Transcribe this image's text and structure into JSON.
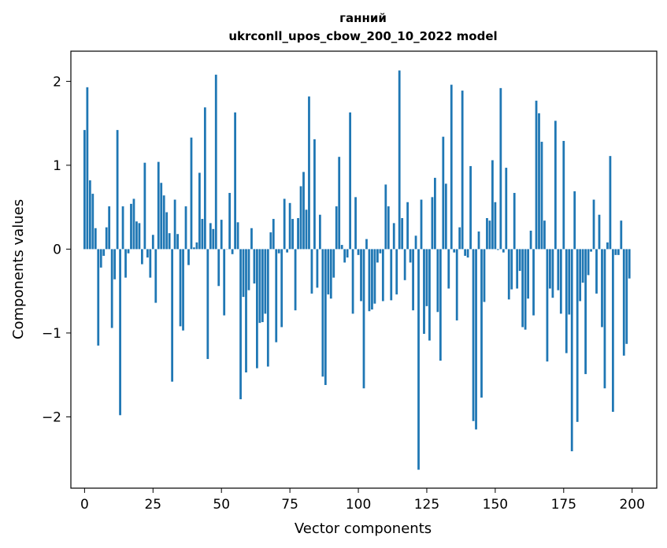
{
  "chart_data": {
    "type": "bar",
    "title_line1": "ганний",
    "title_line2": "ukrconll_upos_cbow_200_10_2022 model",
    "xlabel": "Vector components",
    "ylabel": "Components values",
    "xlim": [
      -5,
      209
    ],
    "ylim": [
      -2.85,
      2.36
    ],
    "grid": false,
    "bar_color": "#1f77b4",
    "xticks": [
      0,
      25,
      50,
      75,
      100,
      125,
      150,
      175,
      200
    ],
    "xtick_labels": [
      "0",
      "25",
      "50",
      "75",
      "100",
      "125",
      "150",
      "175",
      "200"
    ],
    "yticks": [
      -2,
      -1,
      0,
      1,
      2
    ],
    "ytick_labels": [
      "−2",
      "−1",
      "0",
      "1",
      "2"
    ],
    "values": [
      1.42,
      1.93,
      0.82,
      0.66,
      0.25,
      -1.15,
      -0.22,
      -0.08,
      0.26,
      0.51,
      -0.94,
      -0.36,
      1.42,
      -1.98,
      0.51,
      -0.34,
      -0.05,
      0.54,
      0.6,
      0.33,
      0.31,
      -0.18,
      1.03,
      -0.1,
      -0.34,
      0.17,
      -0.64,
      1.04,
      0.79,
      0.64,
      0.44,
      0.19,
      -1.58,
      0.59,
      0.18,
      -0.92,
      -0.97,
      0.51,
      -0.19,
      1.33,
      0.02,
      0.08,
      0.91,
      0.36,
      1.69,
      -1.31,
      0.31,
      0.24,
      2.08,
      -0.44,
      0.35,
      -0.79,
      0.0,
      0.67,
      -0.06,
      1.63,
      0.32,
      -1.79,
      -0.57,
      -1.47,
      -0.49,
      0.25,
      -0.41,
      -1.42,
      -0.88,
      -0.87,
      -0.77,
      -1.4,
      0.2,
      0.36,
      -1.11,
      -0.05,
      -0.93,
      0.6,
      -0.04,
      0.55,
      0.36,
      -0.73,
      0.37,
      0.75,
      0.92,
      0.47,
      1.82,
      -0.53,
      1.31,
      -0.46,
      0.41,
      -1.52,
      -1.62,
      -0.54,
      -0.59,
      -0.34,
      0.51,
      1.1,
      0.05,
      -0.16,
      -0.1,
      1.63,
      -0.77,
      0.62,
      -0.07,
      -0.62,
      -1.66,
      0.12,
      -0.74,
      -0.72,
      -0.65,
      -0.16,
      -0.05,
      -0.62,
      0.77,
      0.51,
      -0.61,
      0.31,
      -0.54,
      2.13,
      0.37,
      -0.37,
      0.56,
      -0.16,
      -0.73,
      0.16,
      -2.63,
      0.59,
      -1.01,
      -0.68,
      -1.09,
      0.62,
      0.85,
      -0.75,
      -1.33,
      1.34,
      0.78,
      -0.47,
      1.96,
      -0.04,
      -0.85,
      0.26,
      1.89,
      -0.08,
      -0.1,
      0.99,
      -2.05,
      -2.15,
      0.21,
      -1.77,
      -0.63,
      0.37,
      0.34,
      1.06,
      0.56,
      -0.01,
      1.92,
      -0.04,
      0.97,
      -0.6,
      -0.48,
      0.67,
      -0.47,
      -0.26,
      -0.93,
      -0.96,
      -0.59,
      0.22,
      -0.79,
      1.77,
      1.62,
      1.28,
      0.34,
      -1.34,
      -0.47,
      -0.58,
      1.53,
      -0.49,
      -0.77,
      1.29,
      -1.24,
      -0.78,
      -2.41,
      0.69,
      -2.06,
      -0.62,
      -0.4,
      -1.49,
      -0.31,
      -0.03,
      0.59,
      -0.53,
      0.41,
      -0.93,
      -1.66,
      0.08,
      1.11,
      -1.94,
      -0.07,
      -0.07,
      0.34,
      -1.27,
      -1.13,
      -0.35
    ]
  }
}
